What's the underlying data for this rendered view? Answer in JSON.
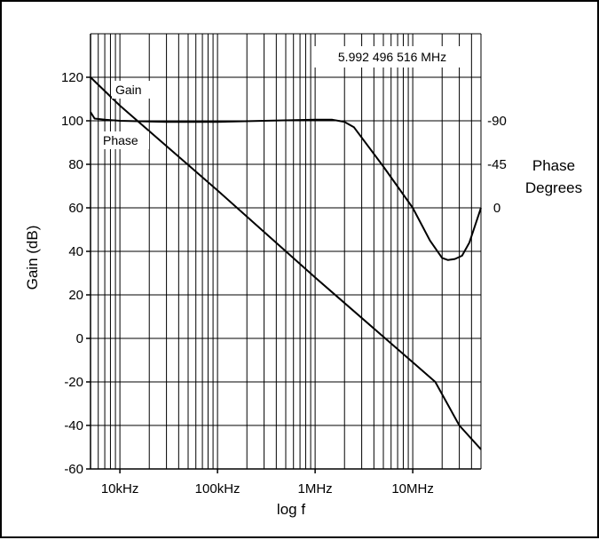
{
  "chart_data": {
    "type": "line",
    "xscale": "log",
    "xlabel": "log f",
    "ylabel": "Gain (dB)",
    "y2label_line1": "Phase",
    "y2label_line2": "Degrees",
    "xlim": [
      5000,
      50000000
    ],
    "ylim": [
      -60,
      140
    ],
    "y_ticks": [
      120,
      100,
      80,
      60,
      40,
      20,
      0,
      -20,
      -40,
      -60
    ],
    "y_tick_labels": [
      "120",
      "100",
      "80",
      "60",
      "40",
      "20",
      "0",
      "-20",
      "-40",
      "-60"
    ],
    "x_ticks": [
      10000,
      100000,
      1000000,
      10000000
    ],
    "x_tick_labels": [
      "10kHz",
      "100kHz",
      "1MHz",
      "10MHz"
    ],
    "y2_ticks": [
      100,
      80,
      60
    ],
    "y2_tick_labels": [
      "-90",
      "-45",
      "0"
    ],
    "grid": true,
    "annotation": "5.992 496 516 MHz",
    "series": [
      {
        "name": "Gain",
        "x": [
          5000,
          10000,
          100000,
          1000000,
          10000000,
          17000000,
          30000000,
          50000000
        ],
        "y": [
          120,
          107,
          68,
          28,
          -11,
          -20,
          -40,
          -51
        ]
      },
      {
        "name": "Phase",
        "x": [
          5000,
          5500,
          7000,
          10000,
          30000,
          100000,
          300000,
          1000000,
          1500000,
          2000000,
          2500000,
          5000000,
          10000000,
          15000000,
          20000000,
          23000000,
          27000000,
          32000000,
          38000000,
          50000000
        ],
        "y": [
          104,
          101,
          100.5,
          100,
          99.5,
          99.5,
          100,
          100.5,
          100.5,
          99.5,
          97,
          79,
          60,
          45,
          37,
          36,
          36.5,
          38,
          44,
          60
        ]
      }
    ]
  }
}
